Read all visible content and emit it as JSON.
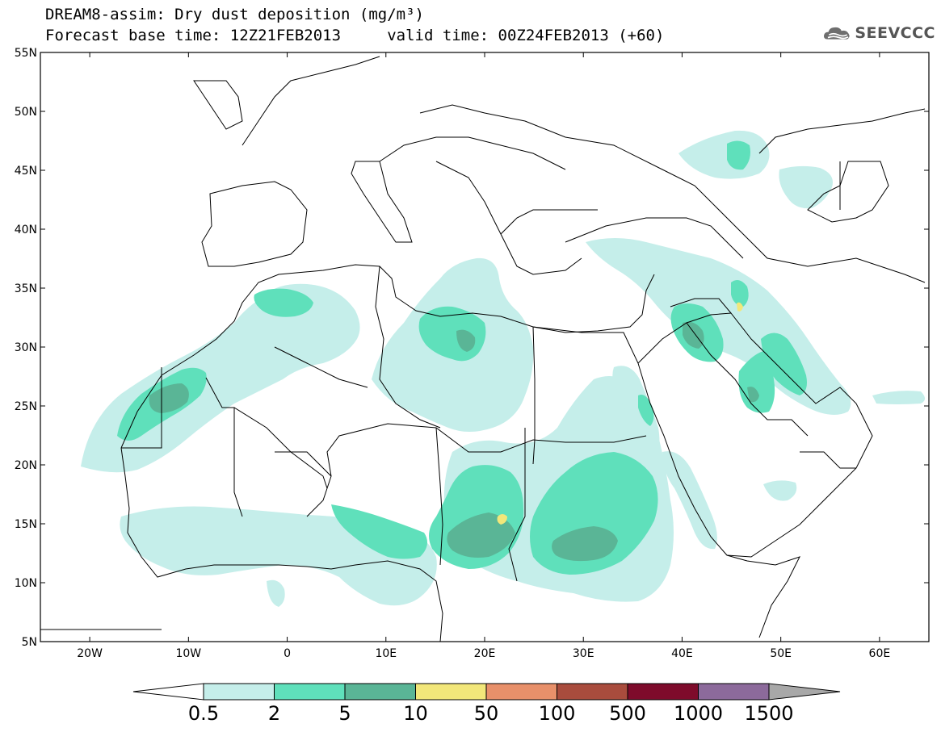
{
  "title": {
    "line1": "DREAM8-assim: Dry dust deposition (mg/m³)",
    "line2": "Forecast base time: 12Z21FEB2013     valid time: 00Z24FEB2013 (+60)"
  },
  "logo": {
    "text": "SEEVCCC",
    "icon": "cloud-logo-icon"
  },
  "map": {
    "lon_range": [
      -25,
      65
    ],
    "lat_range": [
      5,
      55
    ],
    "lon_ticks": [
      "20W",
      "10W",
      "0",
      "10E",
      "20E",
      "30E",
      "40E",
      "50E",
      "60E"
    ],
    "lat_ticks": [
      "5N",
      "10N",
      "15N",
      "20N",
      "25N",
      "30N",
      "35N",
      "40N",
      "45N",
      "50N",
      "55N"
    ]
  },
  "colorbar": {
    "labels": [
      "0.5",
      "2",
      "5",
      "10",
      "50",
      "100",
      "500",
      "1000",
      "1500"
    ],
    "colors": [
      "#c5eeea",
      "#5fe0bb",
      "#5ab596",
      "#f2e77a",
      "#e8906a",
      "#a94c3d",
      "#7e0b2b",
      "#8c6a9b"
    ],
    "under_color": "#ffffff",
    "over_color": "#a8a8a8"
  },
  "legend_levels": {
    "low": "#c5eeea",
    "mid": "#5fe0bb",
    "high": "#5ab596",
    "peak": "#f2e77a",
    "very_high": "#8c6a9b"
  }
}
